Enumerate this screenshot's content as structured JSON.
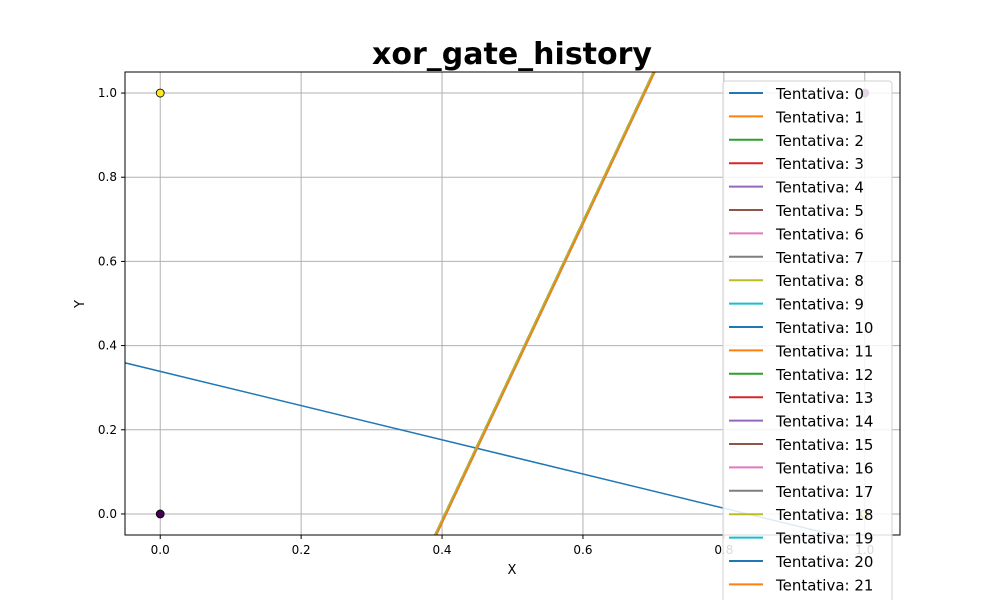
{
  "chart_data": {
    "type": "line",
    "title": "xor_gate_history",
    "xlabel": "X",
    "ylabel": "Y",
    "xlim": [
      -0.05,
      1.05
    ],
    "ylim": [
      -0.05,
      1.05
    ],
    "x_ticks": [
      0.0,
      0.2,
      0.4,
      0.6,
      0.8,
      1.0
    ],
    "y_ticks": [
      0.0,
      0.2,
      0.4,
      0.6,
      0.8,
      1.0
    ],
    "x_tick_labels": [
      "0.0",
      "0.2",
      "0.4",
      "0.6",
      "0.8",
      "1.0"
    ],
    "y_tick_labels": [
      "0.0",
      "0.2",
      "0.4",
      "0.6",
      "0.8",
      "1.0"
    ],
    "grid": true,
    "legend_placement": "top-right",
    "points": [
      {
        "x": 0,
        "y": 0,
        "color": "#440154"
      },
      {
        "x": 0,
        "y": 1,
        "color": "#fde725"
      },
      {
        "x": 1,
        "y": 0,
        "color": "#fde725"
      },
      {
        "x": 1,
        "y": 1,
        "color": "#440154"
      }
    ],
    "series": [
      {
        "name": "Tentativa: 0",
        "color": "#1f77b4",
        "x": [
          -0.05,
          1.05
        ],
        "y": [
          0.359,
          -0.088
        ]
      },
      {
        "name": "Tentativa: 1",
        "color": "#ff7f0e",
        "x": [
          0.39,
          0.7
        ],
        "y": [
          -0.05,
          1.05
        ]
      },
      {
        "name": "Tentativa: 2",
        "color": "#2ca02c",
        "x": [
          0.39,
          0.7
        ],
        "y": [
          -0.05,
          1.05
        ]
      },
      {
        "name": "Tentativa: 3",
        "color": "#d62728",
        "x": [
          0.39,
          0.7
        ],
        "y": [
          -0.05,
          1.05
        ]
      },
      {
        "name": "Tentativa: 4",
        "color": "#9467bd",
        "x": [
          0.39,
          0.7
        ],
        "y": [
          -0.05,
          1.05
        ]
      },
      {
        "name": "Tentativa: 5",
        "color": "#8c564b",
        "x": [
          0.39,
          0.7
        ],
        "y": [
          -0.05,
          1.05
        ]
      },
      {
        "name": "Tentativa: 6",
        "color": "#e377c2",
        "x": [
          0.39,
          0.7
        ],
        "y": [
          -0.05,
          1.05
        ]
      },
      {
        "name": "Tentativa: 7",
        "color": "#7f7f7f",
        "x": [
          0.39,
          0.7
        ],
        "y": [
          -0.05,
          1.05
        ]
      },
      {
        "name": "Tentativa: 8",
        "color": "#bcbd22",
        "x": [
          0.39,
          0.7
        ],
        "y": [
          -0.05,
          1.05
        ]
      },
      {
        "name": "Tentativa: 9",
        "color": "#17becf",
        "x": [
          0.39,
          0.7
        ],
        "y": [
          -0.05,
          1.05
        ]
      },
      {
        "name": "Tentativa: 10",
        "color": "#1f77b4",
        "x": [
          0.39,
          0.7
        ],
        "y": [
          -0.05,
          1.05
        ]
      },
      {
        "name": "Tentativa: 11",
        "color": "#ff7f0e",
        "x": [
          0.39,
          0.7
        ],
        "y": [
          -0.05,
          1.05
        ]
      },
      {
        "name": "Tentativa: 12",
        "color": "#2ca02c",
        "x": [
          0.39,
          0.7
        ],
        "y": [
          -0.05,
          1.05
        ]
      },
      {
        "name": "Tentativa: 13",
        "color": "#d62728",
        "x": [
          0.39,
          0.7
        ],
        "y": [
          -0.05,
          1.05
        ]
      },
      {
        "name": "Tentativa: 14",
        "color": "#9467bd",
        "x": [
          0.39,
          0.7
        ],
        "y": [
          -0.05,
          1.05
        ]
      },
      {
        "name": "Tentativa: 15",
        "color": "#8c564b",
        "x": [
          0.39,
          0.7
        ],
        "y": [
          -0.05,
          1.05
        ]
      },
      {
        "name": "Tentativa: 16",
        "color": "#e377c2",
        "x": [
          0.39,
          0.7
        ],
        "y": [
          -0.05,
          1.05
        ]
      },
      {
        "name": "Tentativa: 17",
        "color": "#7f7f7f",
        "x": [
          0.39,
          0.7
        ],
        "y": [
          -0.05,
          1.05
        ]
      },
      {
        "name": "Tentativa: 18",
        "color": "#bcbd22",
        "x": [
          0.39,
          0.7
        ],
        "y": [
          -0.05,
          1.05
        ]
      },
      {
        "name": "Tentativa: 19",
        "color": "#17becf",
        "x": [
          0.392,
          0.702
        ],
        "y": [
          -0.05,
          1.05
        ]
      },
      {
        "name": "Tentativa: 20",
        "color": "#1f77b4",
        "x": [
          0.392,
          0.702
        ],
        "y": [
          -0.05,
          1.05
        ]
      },
      {
        "name": "Tentativa: 21",
        "color": "#ff7f0e",
        "x": [
          0.392,
          0.702
        ],
        "y": [
          -0.05,
          1.05
        ]
      }
    ]
  }
}
